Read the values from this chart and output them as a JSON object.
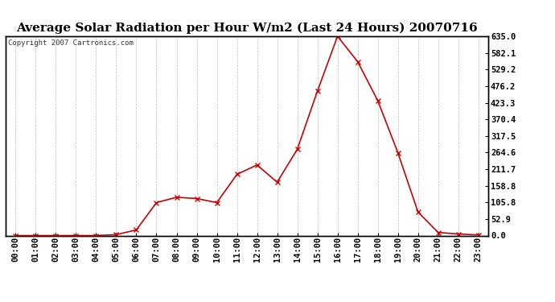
{
  "title": "Average Solar Radiation per Hour W/m2 (Last 24 Hours) 20070716",
  "copyright": "Copyright 2007 Cartronics.com",
  "hours": [
    "00:00",
    "01:00",
    "02:00",
    "03:00",
    "04:00",
    "05:00",
    "06:00",
    "07:00",
    "08:00",
    "09:00",
    "10:00",
    "11:00",
    "12:00",
    "13:00",
    "14:00",
    "15:00",
    "16:00",
    "17:00",
    "18:00",
    "19:00",
    "20:00",
    "21:00",
    "22:00",
    "23:00"
  ],
  "values": [
    0.0,
    0.0,
    0.0,
    0.0,
    0.0,
    3.0,
    18.0,
    105.0,
    122.0,
    118.0,
    105.0,
    195.0,
    225.0,
    170.0,
    275.0,
    460.0,
    635.0,
    554.0,
    430.0,
    264.0,
    75.0,
    10.0,
    5.0,
    2.0
  ],
  "line_color": "#cc0000",
  "bg_color": "#ffffff",
  "grid_color": "#bbbbbb",
  "ylim": [
    0.0,
    635.0
  ],
  "ytick_labels": [
    "0.0",
    "52.9",
    "105.8",
    "158.8",
    "211.7",
    "264.6",
    "317.5",
    "370.4",
    "423.3",
    "476.2",
    "529.2",
    "582.1",
    "635.0"
  ],
  "ytick_values": [
    0.0,
    52.9,
    105.8,
    158.8,
    211.7,
    264.6,
    317.5,
    370.4,
    423.3,
    476.2,
    529.2,
    582.1,
    635.0
  ],
  "title_fontsize": 11,
  "copyright_fontsize": 6.5,
  "tick_fontsize": 7.5,
  "border_color": "#000000"
}
